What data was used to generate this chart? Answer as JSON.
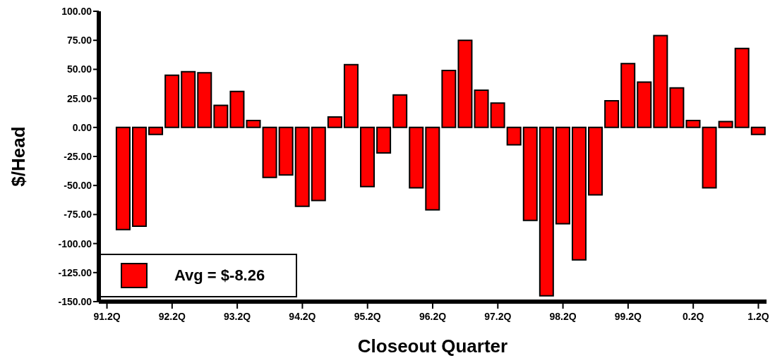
{
  "chart_data": {
    "type": "bar",
    "xlabel": "Closeout Quarter",
    "ylabel": "$/Head",
    "categories": [
      "91.2Q",
      null,
      null,
      null,
      "92.2Q",
      null,
      null,
      null,
      "93.2Q",
      null,
      null,
      null,
      "94.2Q",
      null,
      null,
      null,
      "95.2Q",
      null,
      null,
      null,
      "96.2Q",
      null,
      null,
      null,
      "97.2Q",
      null,
      null,
      null,
      "98.2Q",
      null,
      null,
      null,
      "99.2Q",
      null,
      null,
      null,
      "0.2Q",
      null,
      null,
      null,
      "1.2Q"
    ],
    "series": [
      {
        "name": "Avg = $-8.26",
        "color": "#ff0000",
        "values": [
          0,
          -88,
          -85,
          -6,
          45,
          48,
          47,
          19,
          31,
          6,
          -43,
          -41,
          -68,
          -63,
          9,
          54,
          -51,
          -22,
          28,
          -52,
          -71,
          49,
          75,
          32,
          21,
          -15,
          -80,
          -145,
          -83,
          -114,
          -58,
          23,
          55,
          39,
          79,
          34,
          6,
          -52,
          5,
          68,
          -6
        ]
      }
    ],
    "ylim": [
      -150,
      100
    ],
    "yticks": [
      {
        "value": -150,
        "label": "-150.00"
      },
      {
        "value": -125,
        "label": "-125.00"
      },
      {
        "value": -100,
        "label": "-100.00"
      },
      {
        "value": -75,
        "label": "-75.00"
      },
      {
        "value": -50,
        "label": "-50.00"
      },
      {
        "value": -25,
        "label": "-25.00"
      },
      {
        "value": 0,
        "label": "0.00"
      },
      {
        "value": 25,
        "label": "25.00"
      },
      {
        "value": 50,
        "label": "50.00"
      },
      {
        "value": 75,
        "label": "75.00"
      },
      {
        "value": 100,
        "label": "100.00"
      }
    ],
    "grid": false,
    "legend": "bottom left"
  }
}
